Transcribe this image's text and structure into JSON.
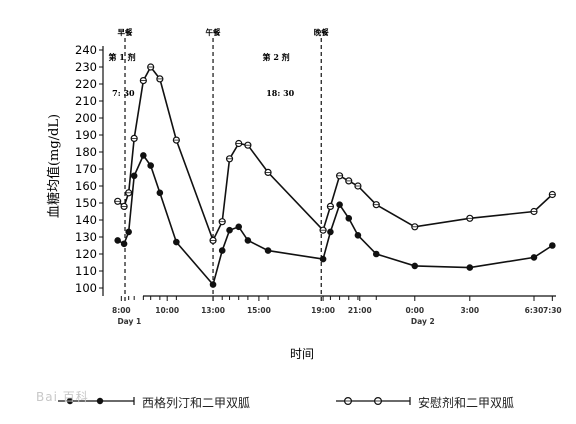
{
  "chart_data": {
    "type": "line",
    "ylabel": "血糖均值(mg/dL)",
    "xlabel": "时间",
    "ylim": [
      100,
      240
    ],
    "yticks": [
      100,
      110,
      120,
      130,
      140,
      150,
      160,
      170,
      180,
      190,
      200,
      210,
      220,
      230,
      240
    ],
    "xlim": [
      7.0,
      31.7
    ],
    "xticks": [
      {
        "x": 8,
        "label": "8:00"
      },
      {
        "x": 10.5,
        "label": "10:00"
      },
      {
        "x": 13,
        "label": "13:00"
      },
      {
        "x": 15.5,
        "label": "15:00"
      },
      {
        "x": 19,
        "label": "19:00"
      },
      {
        "x": 21,
        "label": "21:00"
      },
      {
        "x": 24,
        "label": "0:00"
      },
      {
        "x": 27,
        "label": "3:00"
      },
      {
        "x": 30.5,
        "label": "6:30"
      },
      {
        "x": 31.5,
        "label": "7:30"
      }
    ],
    "day_labels": [
      {
        "x": 8,
        "label": "Day 1"
      },
      {
        "x": 24,
        "label": "Day 2"
      }
    ],
    "meal_markers": [
      {
        "x": 8.2,
        "label": "早餐"
      },
      {
        "x": 13.0,
        "label": "午餐"
      },
      {
        "x": 18.9,
        "label": "晚餐"
      }
    ],
    "annotations": [
      {
        "x": 7.3,
        "y": 234,
        "text": "第 1 剂"
      },
      {
        "x": 7.5,
        "y": 213,
        "text": "7: 30"
      },
      {
        "x": 15.7,
        "y": 234,
        "text": "第 2 剂"
      },
      {
        "x": 15.9,
        "y": 213,
        "text": "18: 30"
      }
    ],
    "series": [
      {
        "name": "西格列汀和二甲双胍",
        "marker": "filled",
        "x": [
          7.8,
          8.15,
          8.4,
          8.7,
          9.2,
          9.6,
          10.1,
          11.0,
          13.0,
          13.5,
          13.9,
          14.4,
          14.9,
          16.0,
          19.0,
          19.4,
          19.9,
          20.4,
          20.9,
          21.9,
          24.0,
          27.0,
          30.5,
          31.5
        ],
        "y": [
          128,
          126,
          133,
          166,
          178,
          172,
          156,
          127,
          102,
          122,
          134,
          136,
          128,
          122,
          117,
          133,
          149,
          141,
          131,
          120,
          113,
          112,
          118,
          125
        ]
      },
      {
        "name": "安慰剂和二甲双胍",
        "marker": "open",
        "x": [
          7.8,
          8.15,
          8.4,
          8.7,
          9.2,
          9.6,
          10.1,
          11.0,
          13.0,
          13.5,
          13.9,
          14.4,
          14.9,
          16.0,
          19.0,
          19.4,
          19.9,
          20.4,
          20.9,
          21.9,
          24.0,
          27.0,
          30.5,
          31.5
        ],
        "y": [
          151,
          148,
          156,
          188,
          222,
          230,
          223,
          187,
          128,
          139,
          176,
          185,
          184,
          168,
          134,
          148,
          166,
          163,
          160,
          149,
          136,
          141,
          145,
          155
        ]
      }
    ]
  },
  "watermark": "Bai 百科"
}
